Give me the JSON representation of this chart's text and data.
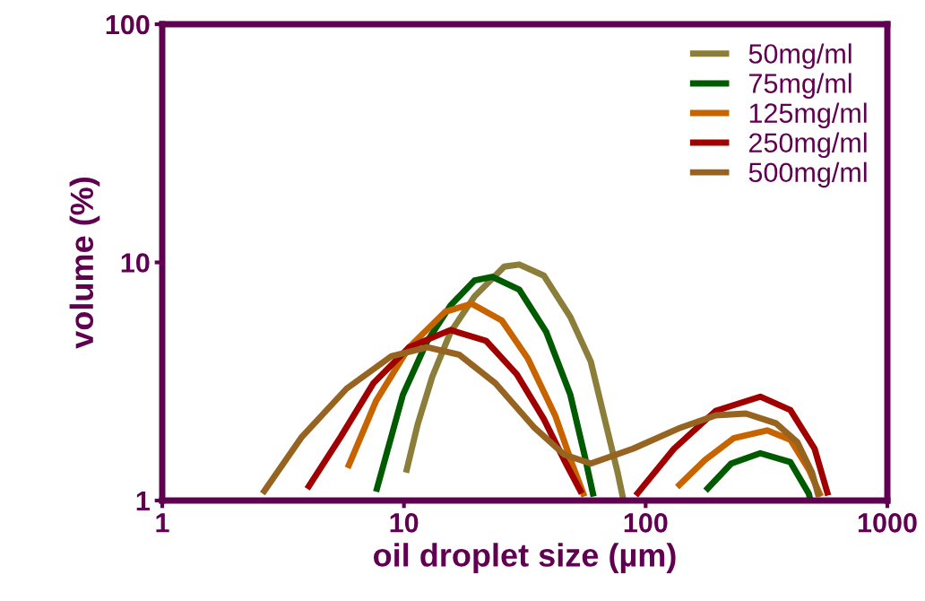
{
  "chart_data": {
    "type": "line",
    "xlabel": "oil droplet size (µm)",
    "ylabel": "volume (%)",
    "log": "xy",
    "xlim": [
      1,
      1000
    ],
    "ylim": [
      1,
      100
    ],
    "xticks": [
      1,
      10,
      100,
      1000
    ],
    "yticks": [
      1,
      10,
      100
    ],
    "grid": false,
    "legend": "top right",
    "marker": "none",
    "line_style": "solid",
    "series": [
      {
        "name": "50mg/ml",
        "color": "#8b7d3a",
        "x": [
          10.2,
          11.4,
          13.1,
          15.6,
          19.6,
          26.0,
          30.0,
          37.9,
          48.8,
          59.3,
          68.5,
          76.6,
          81
        ],
        "values": [
          1.31,
          2.09,
          3.31,
          5.1,
          7.2,
          9.6,
          9.8,
          8.8,
          5.9,
          3.83,
          2.09,
          1.31,
          1.0
        ]
      },
      {
        "name": "75mg/ml",
        "color": "#005a00",
        "x": [
          7.67,
          9.9,
          12.5,
          15.6,
          19.6,
          23.2,
          30.0,
          38.8,
          48.8,
          55.8,
          60.9,
          120,
          177,
          226,
          298,
          397,
          473,
          481
        ],
        "values": [
          1.09,
          2.78,
          4.68,
          6.6,
          8.4,
          8.7,
          7.68,
          5.1,
          2.78,
          1.56,
          1.04,
          null,
          1.1,
          1.43,
          1.58,
          1.45,
          1.07,
          1.0
        ]
      },
      {
        "name": "125mg/ml",
        "color": "#c86400",
        "x": [
          5.85,
          7.67,
          10.5,
          14.8,
          19.1,
          25.4,
          32.6,
          42.2,
          50.1,
          55.8,
          90,
          135,
          176,
          232,
          318,
          397,
          473,
          531
        ],
        "values": [
          1.37,
          2.62,
          4.4,
          6.2,
          6.7,
          5.7,
          3.94,
          2.28,
          1.39,
          1.04,
          null,
          1.14,
          1.48,
          1.83,
          1.97,
          1.8,
          1.35,
          1.04
        ]
      },
      {
        "name": "250mg/ml",
        "color": "#a00000",
        "x": [
          3.98,
          5.47,
          7.48,
          10.5,
          15.6,
          21.9,
          29.3,
          37.9,
          46.0,
          54.4,
          70,
          91,
          131,
          195,
          298,
          397,
          500,
          569
        ],
        "values": [
          1.12,
          1.85,
          3.11,
          4.4,
          5.2,
          4.68,
          3.39,
          2.2,
          1.48,
          1.07,
          null,
          1.05,
          1.65,
          2.38,
          2.73,
          2.4,
          1.65,
          1.05
        ]
      },
      {
        "name": "500mg/ml",
        "color": "#966420",
        "x": [
          2.6,
          3.78,
          5.79,
          8.88,
          12.5,
          16.9,
          23.9,
          34.7,
          46.0,
          59.3,
          88.6,
          139,
          195,
          260,
          346,
          424,
          488,
          520
        ],
        "values": [
          1.07,
          1.85,
          2.95,
          4.04,
          4.4,
          4.1,
          3.11,
          2.02,
          1.56,
          1.43,
          1.65,
          2.02,
          2.28,
          2.32,
          2.11,
          1.76,
          1.31,
          1.04
        ]
      }
    ]
  }
}
